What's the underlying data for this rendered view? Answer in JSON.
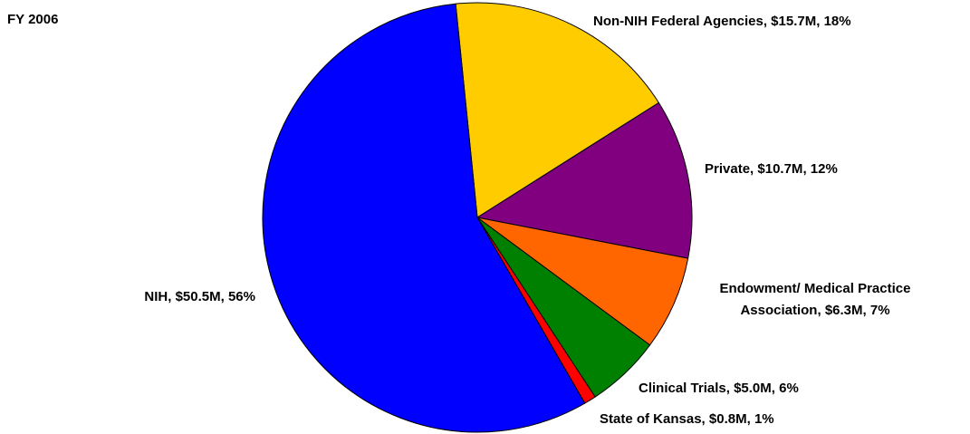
{
  "chart_data": {
    "type": "pie",
    "title": "FY 2006",
    "categories": [
      "Non-NIH Federal Agencies",
      "Private",
      "Endowment/ Medical Practice Association",
      "Clinical Trials",
      "State of Kansas",
      "NIH"
    ],
    "values": [
      15.7,
      10.7,
      6.3,
      5.0,
      0.8,
      50.5
    ],
    "value_labels": [
      "$15.7M",
      "$10.7M",
      "$6.3M",
      "$5.0M",
      "$0.8M",
      "$50.5M"
    ],
    "percents": [
      18,
      12,
      7,
      6,
      1,
      56
    ],
    "percent_labels": [
      "18%",
      "12%",
      "7%",
      "6%",
      "1%",
      "56%"
    ],
    "colors": [
      "#FFCC00",
      "#800080",
      "#FF6600",
      "#008000",
      "#FF0000",
      "#0000FF"
    ]
  }
}
